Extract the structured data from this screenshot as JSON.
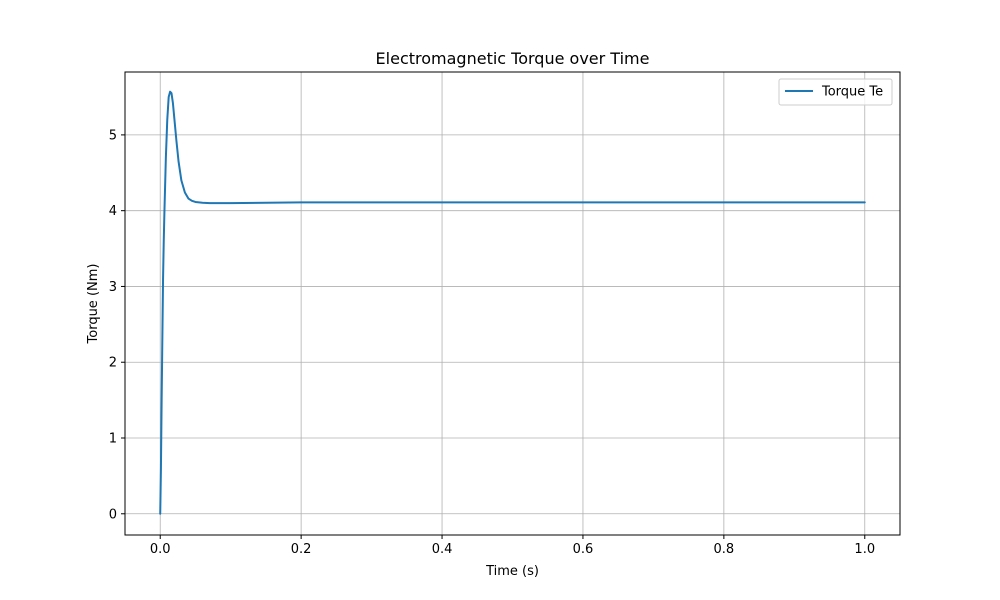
{
  "chart_data": {
    "type": "line",
    "title": "Electromagnetic Torque over Time",
    "xlabel": "Time (s)",
    "ylabel": "Torque (Nm)",
    "xlim": [
      -0.05,
      1.05
    ],
    "ylim": [
      -0.28,
      5.83
    ],
    "xticks": [
      0.0,
      0.2,
      0.4,
      0.6,
      0.8,
      1.0
    ],
    "xtick_labels": [
      "0.0",
      "0.2",
      "0.4",
      "0.6",
      "0.8",
      "1.0"
    ],
    "yticks": [
      0,
      1,
      2,
      3,
      4,
      5
    ],
    "ytick_labels": [
      "0",
      "1",
      "2",
      "3",
      "4",
      "5"
    ],
    "grid": true,
    "legend_position": "upper right",
    "series": [
      {
        "name": "Torque Te",
        "color": "#1f77b4",
        "x": [
          0.0,
          0.001,
          0.002,
          0.003,
          0.004,
          0.005,
          0.006,
          0.008,
          0.01,
          0.012,
          0.014,
          0.016,
          0.018,
          0.02,
          0.023,
          0.026,
          0.03,
          0.035,
          0.04,
          0.045,
          0.05,
          0.055,
          0.06,
          0.07,
          0.08,
          0.1,
          0.15,
          0.2,
          0.3,
          0.4,
          0.5,
          0.6,
          0.7,
          0.8,
          0.9,
          1.0
        ],
        "y": [
          0.0,
          0.6,
          1.5,
          2.3,
          3.1,
          3.6,
          4.0,
          4.7,
          5.2,
          5.5,
          5.57,
          5.55,
          5.42,
          5.22,
          4.92,
          4.65,
          4.4,
          4.24,
          4.16,
          4.13,
          4.115,
          4.11,
          4.105,
          4.1,
          4.1,
          4.1,
          4.105,
          4.11,
          4.11,
          4.11,
          4.11,
          4.11,
          4.11,
          4.11,
          4.11,
          4.11
        ]
      }
    ]
  }
}
